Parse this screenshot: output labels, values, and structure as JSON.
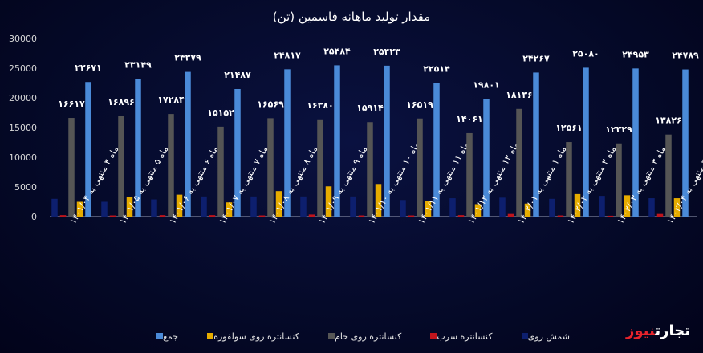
{
  "chart_data": {
    "type": "bar",
    "title": "مقدار تولید ماهانه فاسمین (تن)",
    "yticks": [
      "30000",
      "25000",
      "20000",
      "15000",
      "10000",
      "5000",
      "0"
    ],
    "ylim": [
      0,
      30000
    ],
    "grid": false,
    "legend_position": "bottom",
    "categories": [
      "ماه ۴ منتهی به ۱۴۰۱/۰۴",
      "ماه ۵ منتهی به ۱۴۰۱/۰۵",
      "ماه ۶ منتهی به ۱۴۰۱/۰۶",
      "ماه ۷ منتهی به ۱۴۰۱/۰۷",
      "ماه ۸ منتهی به ۱۴۰۱/۰۸",
      "ماه ۹ منتهی به ۱۴۰۱/۰۹",
      "ماه ۱۰ منتهی به ۱۴۰۱/۱۰",
      "ماه ۱۱ منتهی به ۱۴۰۱/۱۱",
      "ماه ۱۲ منتهی به ۱۴۰۱/۱۲",
      "ماه ۱ منتهی به ۱۴۰۲/۰۱",
      "ماه ۲ منتهی به ۱۴۰۲/۰۲",
      "ماه ۳ منتهی به ۱۴۰۲/۰۳",
      "ماه ۴ منتهی به ۱۴۰۲/۰۴"
    ],
    "series": [
      {
        "name": "شمش روی",
        "color": "#0d1f6e",
        "values": [
          3000,
          2500,
          2900,
          3400,
          3400,
          3400,
          3400,
          2800,
          3100,
          3200,
          3000,
          3500,
          3100
        ]
      },
      {
        "name": "کنسانتره سرب",
        "color": "#c0141c",
        "values": [
          250,
          200,
          250,
          250,
          200,
          350,
          200,
          200,
          250,
          450,
          200,
          150,
          450
        ]
      },
      {
        "name": "کنسانتره روی خام",
        "color": "#555555",
        "values": [
          16617,
          16896,
          17284,
          15152,
          16569,
          16380,
          15914,
          16519,
          14061,
          18136,
          12561,
          12329,
          13826
        ],
        "labels": [
          "۱۶۶۱۷",
          "۱۶۸۹۶",
          "۱۷۲۸۴",
          "۱۵۱۵۲",
          "۱۶۵۶۹",
          "۱۶۳۸۰",
          "۱۵۹۱۴",
          "۱۶۵۱۹",
          "۱۴۰۶۱",
          "۱۸۱۳۶",
          "۱۲۵۶۱",
          "۱۲۳۲۹",
          "۱۳۸۲۶"
        ]
      },
      {
        "name": "کنسانتره روی سولفوره",
        "color": "#e6ac00",
        "values": [
          2500,
          3300,
          3700,
          2400,
          4300,
          5100,
          5500,
          2700,
          2100,
          2200,
          3800,
          3600,
          3100
        ]
      },
      {
        "name": "جمع",
        "color": "#4a8ad8",
        "values": [
          22671,
          23149,
          24379,
          21487,
          24817,
          25484,
          25423,
          22514,
          19801,
          24267,
          25080,
          24953,
          24789
        ],
        "labels": [
          "۲۲۶۷۱",
          "۲۳۱۴۹",
          "۲۴۳۷۹",
          "۲۱۴۸۷",
          "۲۴۸۱۷",
          "۲۵۴۸۴",
          "۲۵۴۲۳",
          "۲۲۵۱۴",
          "۱۹۸۰۱",
          "۲۴۲۶۷",
          "۲۵۰۸۰",
          "۲۴۹۵۳",
          "۲۴۷۸۹"
        ]
      }
    ]
  },
  "brand": {
    "part1": "تجارت",
    "part2": "نیوز"
  }
}
